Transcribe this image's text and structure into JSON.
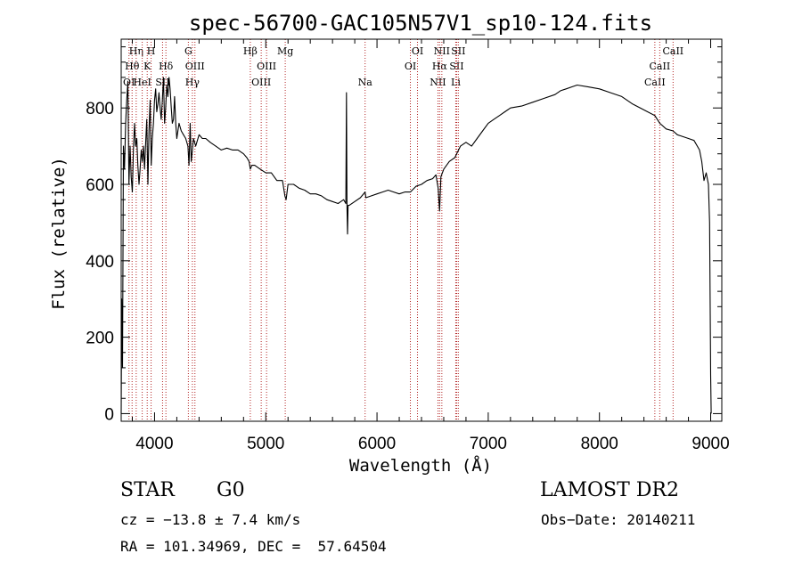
{
  "chart_data": {
    "type": "line",
    "title": "spec-56700-GAC105N57V1_sp10-124.fits",
    "xlabel": "Wavelength (Å)",
    "ylabel": "Flux (relative)",
    "xlim": [
      3700,
      9100
    ],
    "ylim": [
      -20,
      980
    ],
    "xticks": [
      4000,
      5000,
      6000,
      7000,
      8000,
      9000
    ],
    "yticks": [
      0,
      200,
      400,
      600,
      800
    ],
    "grid": false,
    "line_color": "#000000",
    "marker_color": "#b22222",
    "series": [
      {
        "x": [
          3700,
          3705,
          3712,
          3720,
          3730,
          3740,
          3750,
          3760,
          3770,
          3780,
          3790,
          3800,
          3810,
          3820,
          3830,
          3840,
          3850,
          3860,
          3870,
          3880,
          3890,
          3900,
          3910,
          3920,
          3930,
          3940,
          3950,
          3960,
          3970,
          3980,
          3990,
          4000,
          4010,
          4020,
          4030,
          4040,
          4050,
          4060,
          4070,
          4080,
          4090,
          4100,
          4110,
          4120,
          4130,
          4140,
          4150,
          4160,
          4170,
          4180,
          4190,
          4200,
          4220,
          4240,
          4260,
          4280,
          4300,
          4310,
          4320,
          4330,
          4340,
          4350,
          4370,
          4400,
          4430,
          4460,
          4500,
          4550,
          4600,
          4650,
          4700,
          4750,
          4800,
          4830,
          4850,
          4861,
          4875,
          4900,
          4950,
          5000,
          5050,
          5100,
          5150,
          5172,
          5183,
          5200,
          5250,
          5300,
          5350,
          5400,
          5450,
          5500,
          5550,
          5600,
          5650,
          5700,
          5720,
          5725,
          5730,
          5735,
          5740,
          5750,
          5800,
          5850,
          5893,
          5900,
          5950,
          6000,
          6050,
          6100,
          6150,
          6200,
          6250,
          6300,
          6350,
          6400,
          6450,
          6500,
          6530,
          6550,
          6563,
          6575,
          6600,
          6650,
          6700,
          6750,
          6800,
          6850,
          6900,
          6950,
          7000,
          7050,
          7100,
          7150,
          7200,
          7300,
          7400,
          7500,
          7600,
          7650,
          7700,
          7750,
          7800,
          7900,
          8000,
          8100,
          8200,
          8300,
          8400,
          8498,
          8542,
          8600,
          8662,
          8700,
          8750,
          8800,
          8850,
          8900,
          8920,
          8940,
          8960,
          8980,
          8990,
          9000,
          9005
        ],
        "y": [
          0,
          300,
          120,
          700,
          640,
          760,
          820,
          870,
          600,
          700,
          620,
          580,
          690,
          760,
          700,
          720,
          650,
          600,
          640,
          690,
          660,
          700,
          640,
          710,
          770,
          600,
          740,
          820,
          650,
          720,
          760,
          820,
          850,
          790,
          810,
          840,
          800,
          770,
          820,
          880,
          760,
          800,
          860,
          830,
          880,
          850,
          800,
          760,
          770,
          830,
          760,
          720,
          760,
          740,
          730,
          720,
          700,
          650,
          760,
          660,
          690,
          720,
          700,
          730,
          720,
          720,
          710,
          700,
          690,
          695,
          690,
          690,
          680,
          670,
          660,
          640,
          650,
          650,
          640,
          630,
          630,
          610,
          610,
          570,
          560,
          600,
          600,
          590,
          585,
          575,
          575,
          570,
          560,
          555,
          550,
          560,
          550,
          840,
          540,
          470,
          545,
          545,
          555,
          565,
          580,
          565,
          570,
          575,
          580,
          585,
          580,
          575,
          580,
          580,
          595,
          600,
          610,
          615,
          625,
          590,
          530,
          620,
          640,
          660,
          670,
          700,
          710,
          700,
          720,
          740,
          760,
          770,
          780,
          790,
          800,
          805,
          815,
          825,
          835,
          845,
          850,
          855,
          860,
          855,
          850,
          840,
          830,
          810,
          795,
          780,
          760,
          745,
          740,
          730,
          725,
          720,
          715,
          690,
          660,
          610,
          630,
          600,
          500,
          100,
          0
        ]
      }
    ],
    "line_markers": [
      {
        "label": "OI",
        "x": 3770,
        "row": 3
      },
      {
        "label": "Hθ",
        "x": 3798,
        "row": 2
      },
      {
        "label": "Hη",
        "x": 3835,
        "row": 1
      },
      {
        "label": "HeI",
        "x": 3889,
        "row": 3
      },
      {
        "label": "K",
        "x": 3934,
        "row": 2
      },
      {
        "label": "H",
        "x": 3969,
        "row": 1
      },
      {
        "label": "SII",
        "x": 4072,
        "row": 3
      },
      {
        "label": "Hδ",
        "x": 4102,
        "row": 2
      },
      {
        "label": "G",
        "x": 4304,
        "row": 1
      },
      {
        "label": "Hγ",
        "x": 4340,
        "row": 3
      },
      {
        "label": "OIII",
        "x": 4363,
        "row": 2
      },
      {
        "label": "Hβ",
        "x": 4861,
        "row": 1
      },
      {
        "label": "OIII",
        "x": 4959,
        "row": 3
      },
      {
        "label": "OIII",
        "x": 5007,
        "row": 2
      },
      {
        "label": "Mg",
        "x": 5175,
        "row": 1
      },
      {
        "label": "Na",
        "x": 5893,
        "row": 3
      },
      {
        "label": "OI",
        "x": 6300,
        "row": 2
      },
      {
        "label": "OI",
        "x": 6364,
        "row": 1
      },
      {
        "label": "NII",
        "x": 6548,
        "row": 3
      },
      {
        "label": "Hα",
        "x": 6563,
        "row": 2
      },
      {
        "label": "NII",
        "x": 6583,
        "row": 1
      },
      {
        "label": "Li",
        "x": 6708,
        "row": 3
      },
      {
        "label": "SII",
        "x": 6716,
        "row": 2
      },
      {
        "label": "SII",
        "x": 6731,
        "row": 1
      },
      {
        "label": "CaII",
        "x": 8498,
        "row": 3
      },
      {
        "label": "CaII",
        "x": 8542,
        "row": 2
      },
      {
        "label": "CaII",
        "x": 8662,
        "row": 1
      }
    ]
  },
  "info": {
    "object_class": "STAR",
    "subclass": "G0",
    "survey": "LAMOST DR2",
    "redshift_text": "cz = −13.8 ± 7.4 km/s",
    "obs_date_text": "Obs−Date: 20140211",
    "coords_text": "RA = 101.34969, DEC =  57.64504"
  }
}
